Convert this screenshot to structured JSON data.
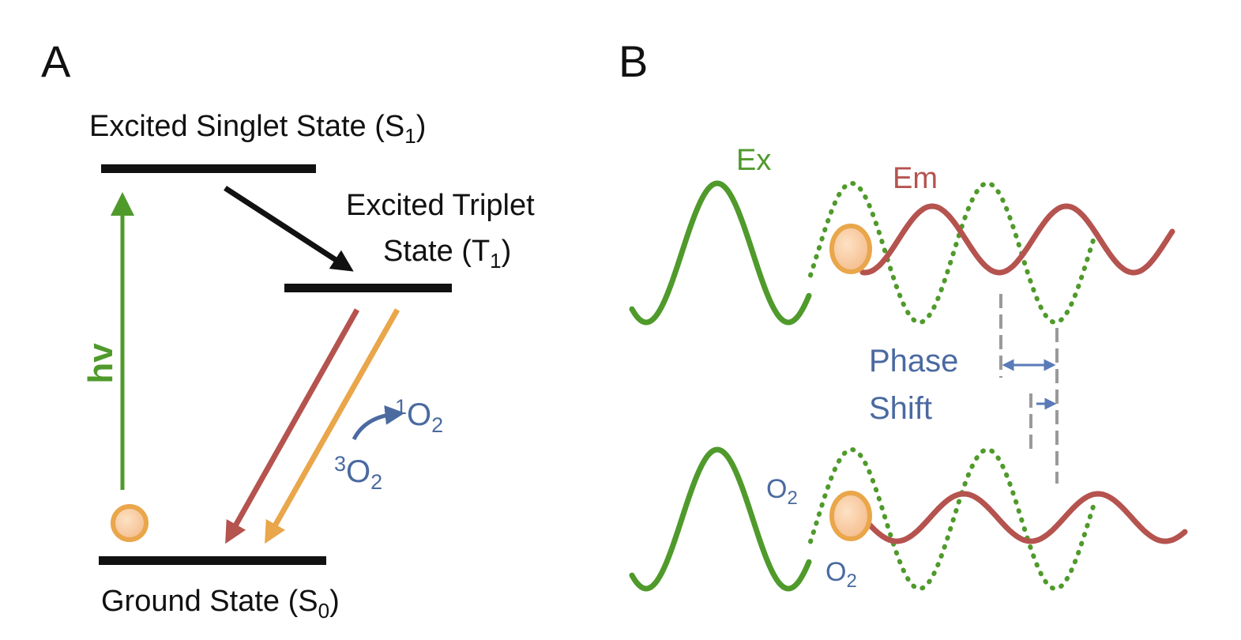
{
  "panel_a": {
    "label": "A",
    "singlet": [
      "Excited Singlet State (S",
      "1",
      ")"
    ],
    "triplet_line1": "Excited Triplet",
    "triplet_line2": [
      "State (T",
      "1",
      ")"
    ],
    "hv": "hv",
    "singlet_oxygen": [
      "1",
      "O",
      "2"
    ],
    "triplet_oxygen": [
      "3",
      "O",
      "2"
    ],
    "ground": [
      "Ground State (S",
      "0",
      ")"
    ]
  },
  "panel_b": {
    "label": "B",
    "ex": "Ex",
    "em": "Em",
    "phase_shift": [
      "Phase",
      "Shift"
    ],
    "oxygen_top": [
      "O",
      "2"
    ],
    "oxygen_bottom": [
      "O",
      "2"
    ]
  }
}
